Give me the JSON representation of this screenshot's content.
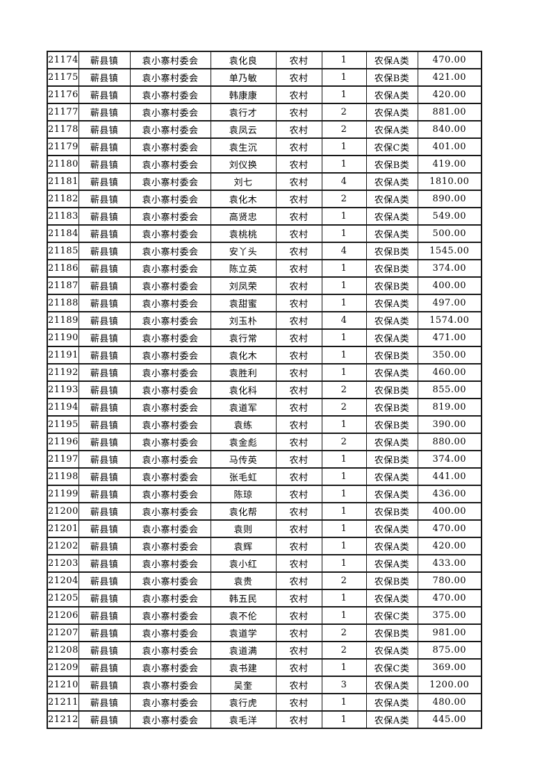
{
  "page": {
    "background_color": "#ffffff",
    "text_color": "#000000",
    "border_color": "#161616"
  },
  "table": {
    "rows": [
      [
        "21174",
        "蕲县镇",
        "袁小寨村委会",
        "袁化良",
        "农村",
        "1",
        "农保A类",
        "470.00"
      ],
      [
        "21175",
        "蕲县镇",
        "袁小寨村委会",
        "单乃敏",
        "农村",
        "1",
        "农保B类",
        "421.00"
      ],
      [
        "21176",
        "蕲县镇",
        "袁小寨村委会",
        "韩康康",
        "农村",
        "1",
        "农保A类",
        "420.00"
      ],
      [
        "21177",
        "蕲县镇",
        "袁小寨村委会",
        "袁行才",
        "农村",
        "2",
        "农保A类",
        "881.00"
      ],
      [
        "21178",
        "蕲县镇",
        "袁小寨村委会",
        "袁凤云",
        "农村",
        "2",
        "农保A类",
        "840.00"
      ],
      [
        "21179",
        "蕲县镇",
        "袁小寨村委会",
        "袁生沉",
        "农村",
        "1",
        "农保C类",
        "401.00"
      ],
      [
        "21180",
        "蕲县镇",
        "袁小寨村委会",
        "刘仪换",
        "农村",
        "1",
        "农保B类",
        "419.00"
      ],
      [
        "21181",
        "蕲县镇",
        "袁小寨村委会",
        "刘七",
        "农村",
        "4",
        "农保A类",
        "1810.00"
      ],
      [
        "21182",
        "蕲县镇",
        "袁小寨村委会",
        "袁化木",
        "农村",
        "2",
        "农保A类",
        "890.00"
      ],
      [
        "21183",
        "蕲县镇",
        "袁小寨村委会",
        "高贤忠",
        "农村",
        "1",
        "农保A类",
        "549.00"
      ],
      [
        "21184",
        "蕲县镇",
        "袁小寨村委会",
        "袁桃桃",
        "农村",
        "1",
        "农保A类",
        "500.00"
      ],
      [
        "21185",
        "蕲县镇",
        "袁小寨村委会",
        "安丫头",
        "农村",
        "4",
        "农保B类",
        "1545.00"
      ],
      [
        "21186",
        "蕲县镇",
        "袁小寨村委会",
        "陈立英",
        "农村",
        "1",
        "农保B类",
        "374.00"
      ],
      [
        "21187",
        "蕲县镇",
        "袁小寨村委会",
        "刘凤荣",
        "农村",
        "1",
        "农保B类",
        "400.00"
      ],
      [
        "21188",
        "蕲县镇",
        "袁小寨村委会",
        "袁甜蜜",
        "农村",
        "1",
        "农保A类",
        "497.00"
      ],
      [
        "21189",
        "蕲县镇",
        "袁小寨村委会",
        "刘玉朴",
        "农村",
        "4",
        "农保A类",
        "1574.00"
      ],
      [
        "21190",
        "蕲县镇",
        "袁小寨村委会",
        "袁行常",
        "农村",
        "1",
        "农保A类",
        "471.00"
      ],
      [
        "21191",
        "蕲县镇",
        "袁小寨村委会",
        "袁化木",
        "农村",
        "1",
        "农保B类",
        "350.00"
      ],
      [
        "21192",
        "蕲县镇",
        "袁小寨村委会",
        "袁胜利",
        "农村",
        "1",
        "农保A类",
        "460.00"
      ],
      [
        "21193",
        "蕲县镇",
        "袁小寨村委会",
        "袁化科",
        "农村",
        "2",
        "农保B类",
        "855.00"
      ],
      [
        "21194",
        "蕲县镇",
        "袁小寨村委会",
        "袁道军",
        "农村",
        "2",
        "农保B类",
        "819.00"
      ],
      [
        "21195",
        "蕲县镇",
        "袁小寨村委会",
        "袁练",
        "农村",
        "1",
        "农保B类",
        "390.00"
      ],
      [
        "21196",
        "蕲县镇",
        "袁小寨村委会",
        "袁金彪",
        "农村",
        "2",
        "农保A类",
        "880.00"
      ],
      [
        "21197",
        "蕲县镇",
        "袁小寨村委会",
        "马传英",
        "农村",
        "1",
        "农保B类",
        "374.00"
      ],
      [
        "21198",
        "蕲县镇",
        "袁小寨村委会",
        "张毛虹",
        "农村",
        "1",
        "农保A类",
        "441.00"
      ],
      [
        "21199",
        "蕲县镇",
        "袁小寨村委会",
        "陈琼",
        "农村",
        "1",
        "农保A类",
        "436.00"
      ],
      [
        "21200",
        "蕲县镇",
        "袁小寨村委会",
        "袁化帮",
        "农村",
        "1",
        "农保B类",
        "400.00"
      ],
      [
        "21201",
        "蕲县镇",
        "袁小寨村委会",
        "袁则",
        "农村",
        "1",
        "农保A类",
        "470.00"
      ],
      [
        "21202",
        "蕲县镇",
        "袁小寨村委会",
        "袁辉",
        "农村",
        "1",
        "农保A类",
        "420.00"
      ],
      [
        "21203",
        "蕲县镇",
        "袁小寨村委会",
        "袁小红",
        "农村",
        "1",
        "农保A类",
        "433.00"
      ],
      [
        "21204",
        "蕲县镇",
        "袁小寨村委会",
        "袁贵",
        "农村",
        "2",
        "农保B类",
        "780.00"
      ],
      [
        "21205",
        "蕲县镇",
        "袁小寨村委会",
        "韩五民",
        "农村",
        "1",
        "农保A类",
        "470.00"
      ],
      [
        "21206",
        "蕲县镇",
        "袁小寨村委会",
        "袁不伦",
        "农村",
        "1",
        "农保C类",
        "375.00"
      ],
      [
        "21207",
        "蕲县镇",
        "袁小寨村委会",
        "袁道学",
        "农村",
        "2",
        "农保B类",
        "981.00"
      ],
      [
        "21208",
        "蕲县镇",
        "袁小寨村委会",
        "袁道满",
        "农村",
        "2",
        "农保A类",
        "875.00"
      ],
      [
        "21209",
        "蕲县镇",
        "袁小寨村委会",
        "袁书建",
        "农村",
        "1",
        "农保C类",
        "369.00"
      ],
      [
        "21210",
        "蕲县镇",
        "袁小寨村委会",
        "吴奎",
        "农村",
        "3",
        "农保A类",
        "1200.00"
      ],
      [
        "21211",
        "蕲县镇",
        "袁小寨村委会",
        "袁行虎",
        "农村",
        "1",
        "农保A类",
        "480.00"
      ],
      [
        "21212",
        "蕲县镇",
        "袁小寨村委会",
        "袁毛洋",
        "农村",
        "1",
        "农保A类",
        "445.00"
      ]
    ]
  }
}
